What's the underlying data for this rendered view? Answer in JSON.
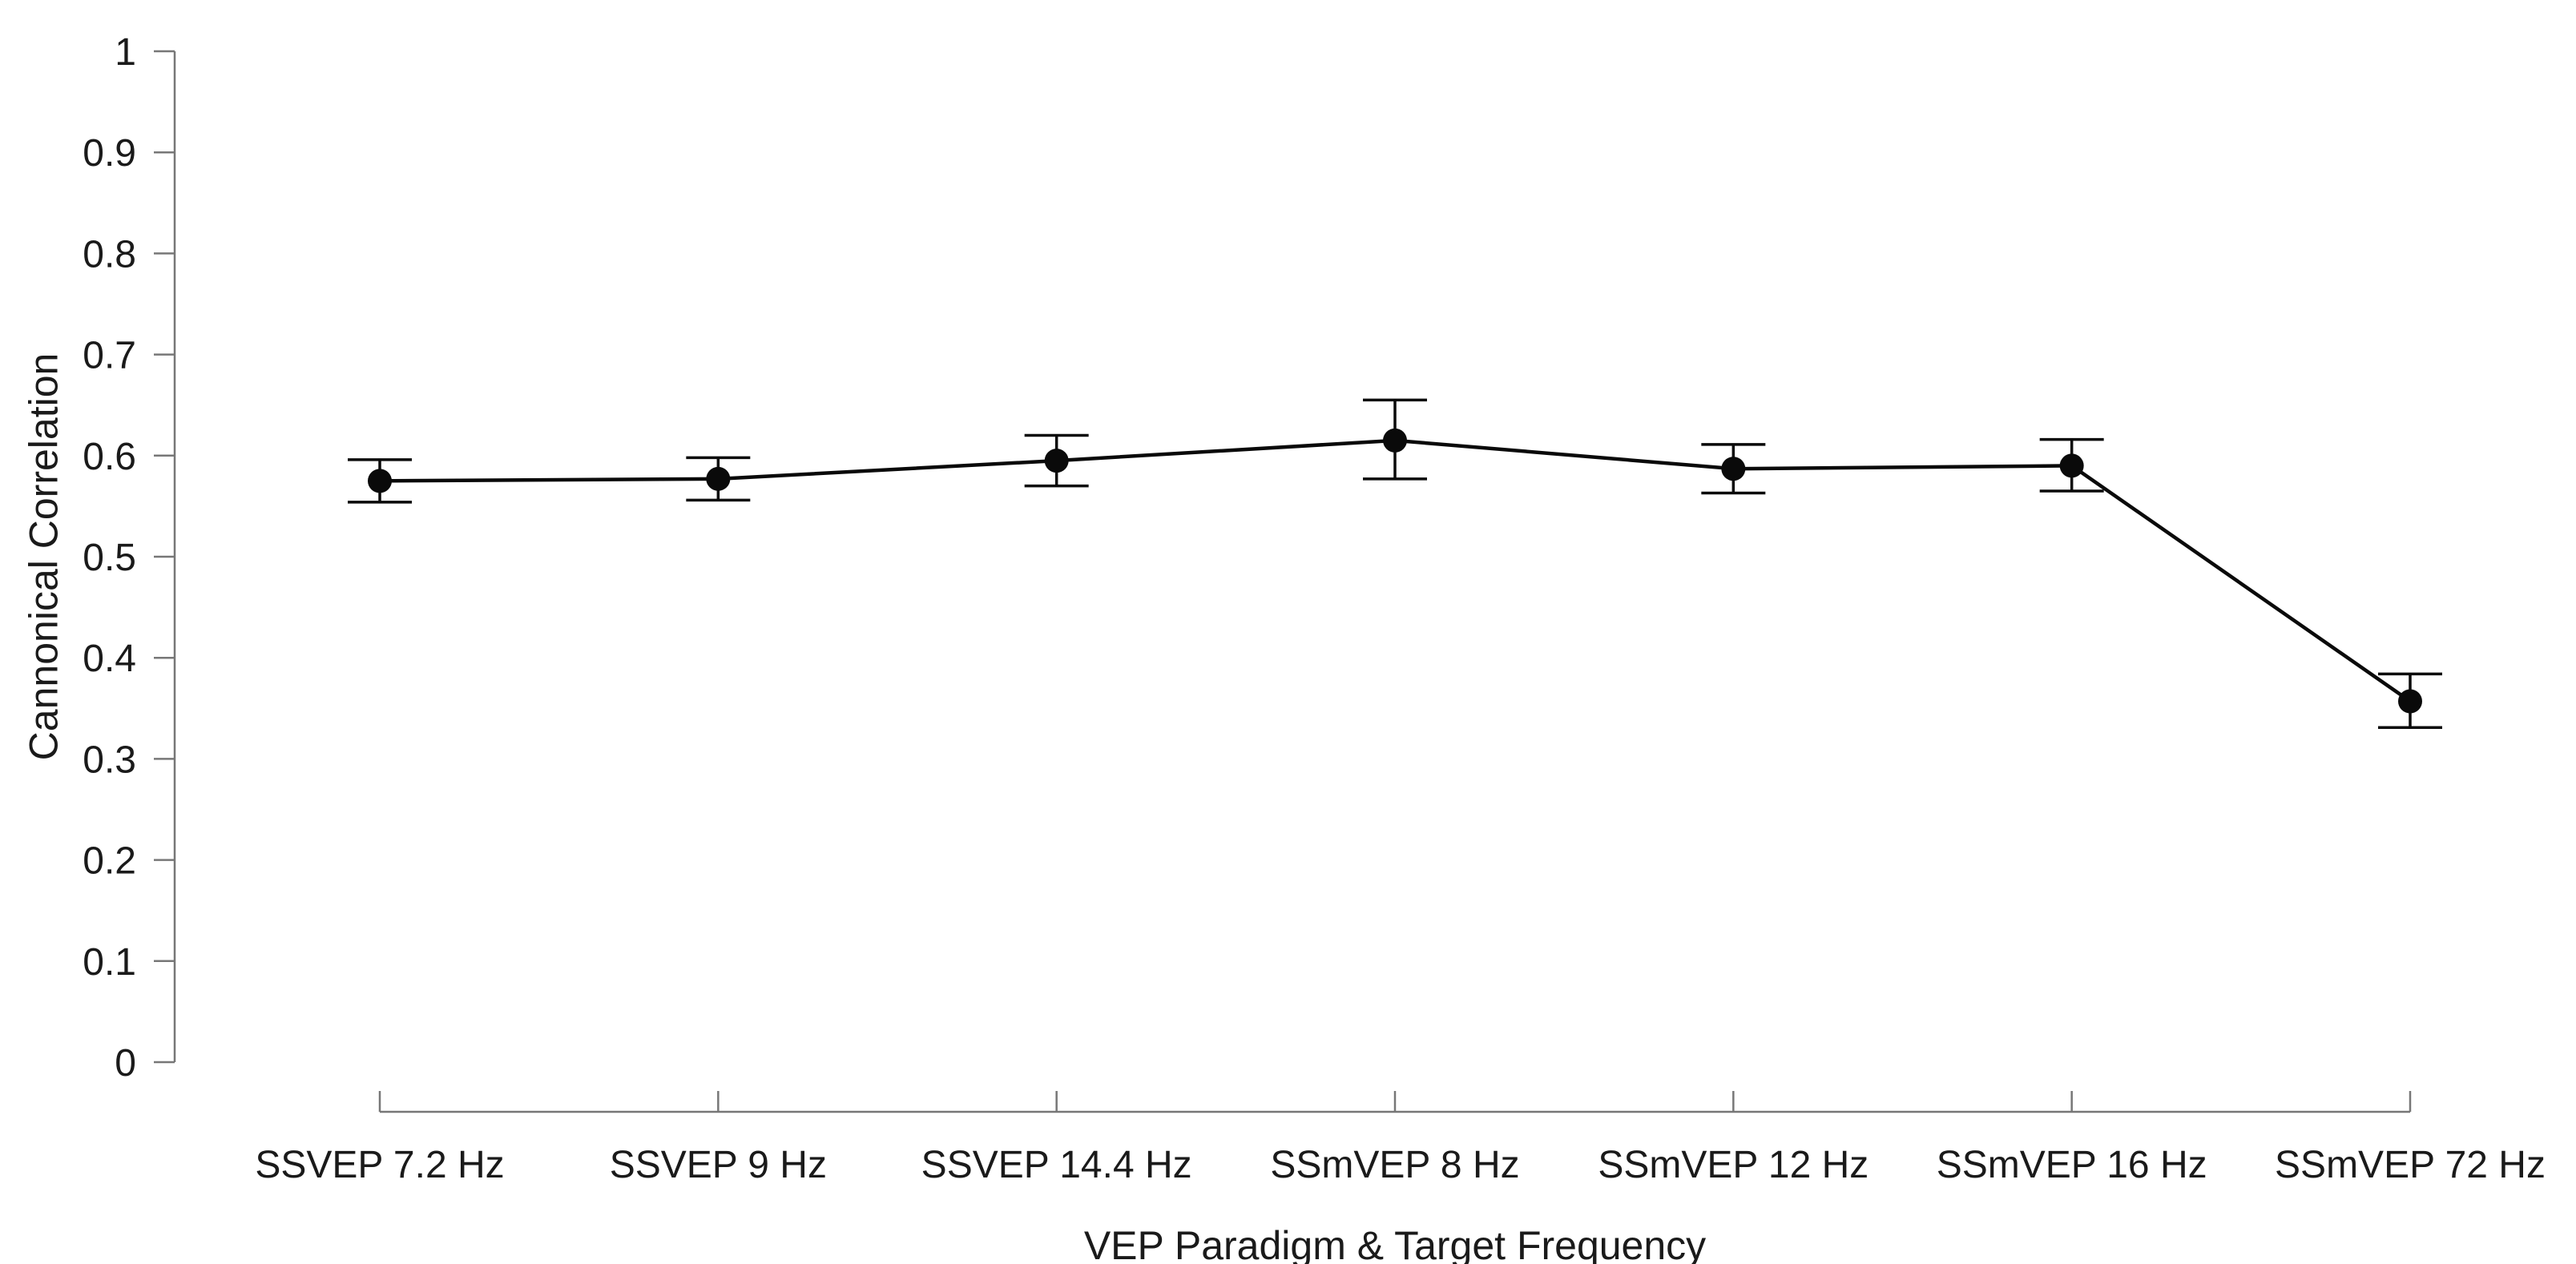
{
  "chart_data": {
    "type": "line",
    "title": "",
    "xlabel": "VEP Paradigm & Target Frequency",
    "ylabel": "Cannonical Correlation",
    "categories": [
      "SSVEP 7.2 Hz",
      "SSVEP 9 Hz",
      "SSVEP 14.4 Hz",
      "SSmVEP 8 Hz",
      "SSmVEP 12 Hz",
      "SSmVEP 16 Hz",
      "SSmVEP 72 Hz"
    ],
    "series": [
      {
        "values": [
          0.575,
          0.577,
          0.595,
          0.615,
          0.587,
          0.59,
          0.357
        ],
        "error_low": [
          0.554,
          0.556,
          0.57,
          0.577,
          0.563,
          0.565,
          0.331
        ],
        "error_high": [
          0.596,
          0.598,
          0.62,
          0.655,
          0.611,
          0.616,
          0.384
        ],
        "color": "#0a0a0a"
      }
    ],
    "ylim": [
      0,
      1
    ],
    "yticks": [
      "0",
      "0.1",
      "0.2",
      "0.3",
      "0.4",
      "0.5",
      "0.6",
      "0.7",
      "0.8",
      "0.9",
      "1"
    ],
    "grid": false,
    "legend": "none"
  }
}
